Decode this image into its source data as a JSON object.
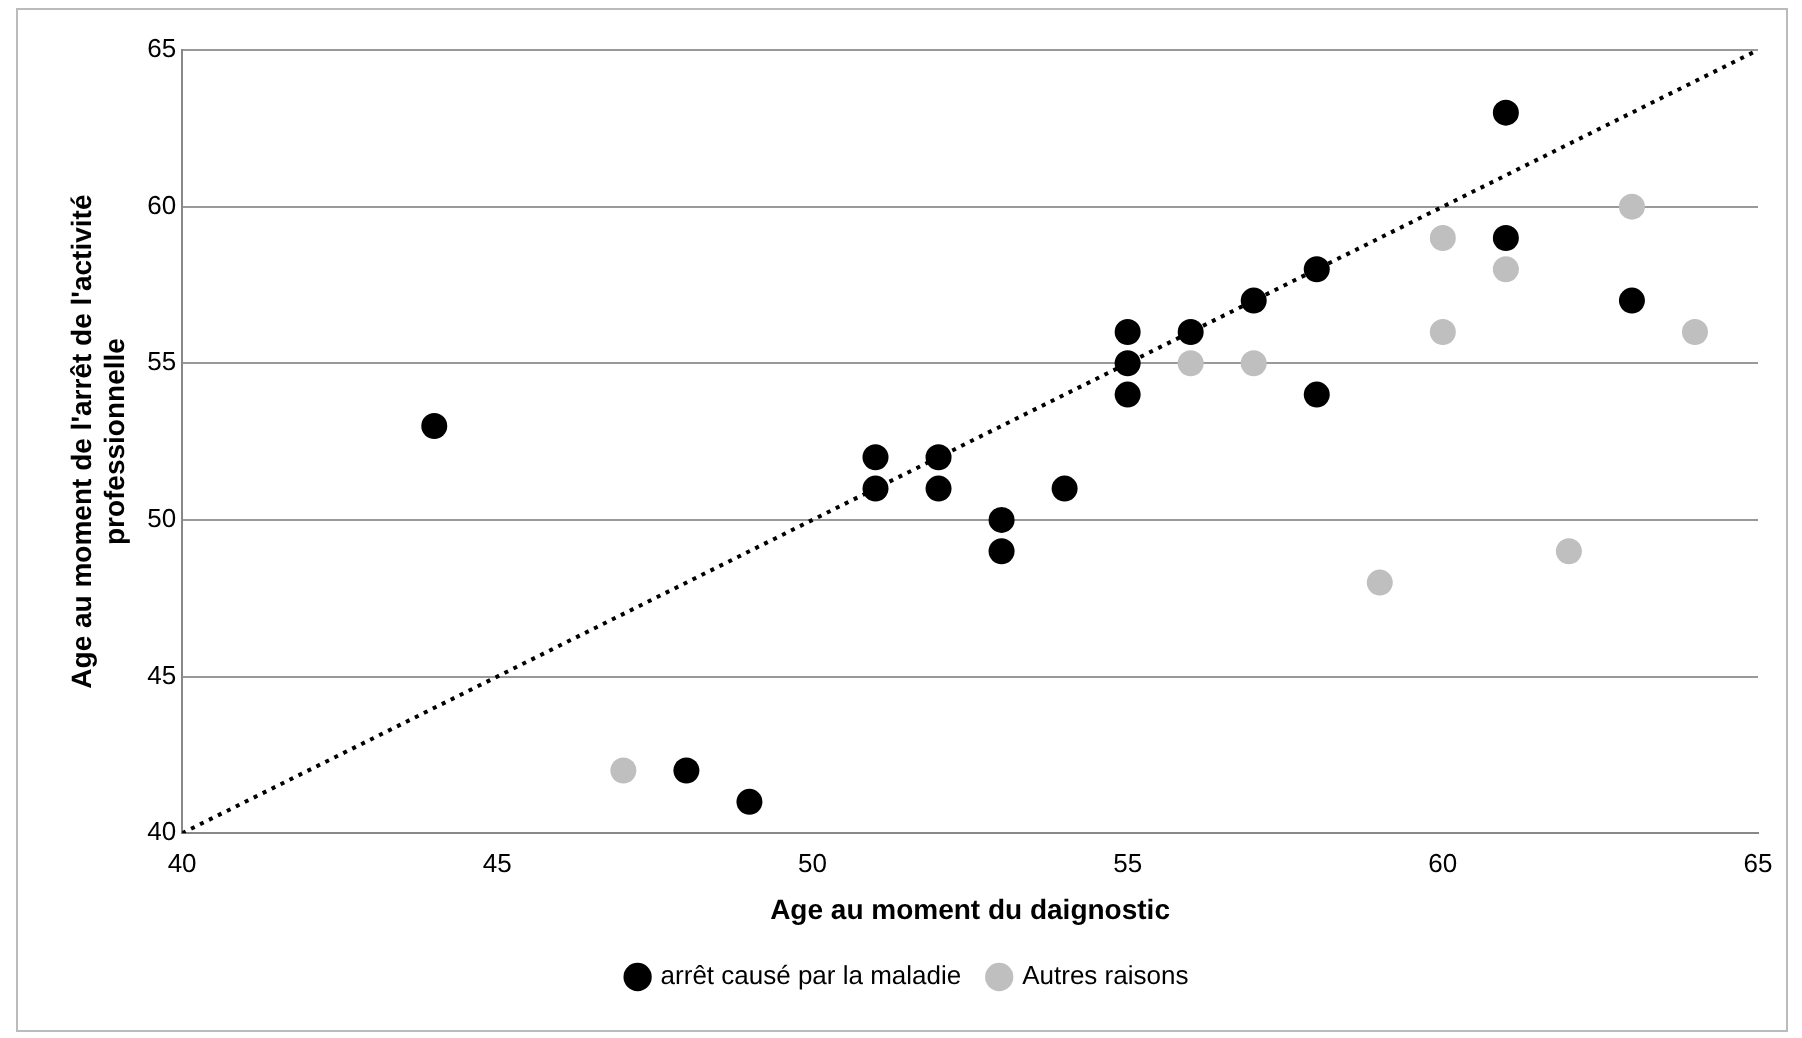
{
  "chart_data": {
    "type": "scatter",
    "xlabel": "Age au moment du daignostic",
    "ylabel": "Age au moment de l'arrêt de l'activité professionnelle",
    "xlim": [
      40,
      65
    ],
    "xticks": [
      40,
      45,
      50,
      55,
      60,
      65
    ],
    "ylim": [
      40,
      65
    ],
    "yticks": [
      40,
      45,
      50,
      55,
      60,
      65
    ],
    "grid": "y",
    "legend": "bottom",
    "marker": "circle",
    "series": [
      {
        "name": "arrêt causé par la maladie",
        "color": "#000000",
        "x": [
          44,
          48,
          49,
          51,
          51,
          52,
          52,
          53,
          53,
          54,
          55,
          55,
          55,
          56,
          57,
          58,
          58,
          61,
          61,
          63
        ],
        "values": [
          53,
          42,
          41,
          52,
          51,
          52,
          51,
          50,
          49,
          51,
          56,
          55,
          54,
          56,
          57,
          58,
          54,
          63,
          59,
          57
        ]
      },
      {
        "name": "Autres raisons",
        "color": "#bfbfbf",
        "x": [
          47,
          56,
          57,
          59,
          60,
          60,
          61,
          62,
          63,
          64
        ],
        "values": [
          42,
          55,
          55,
          48,
          59,
          56,
          58,
          49,
          60,
          56
        ]
      },
      {
        "type": "line",
        "color": "#000000",
        "line_style": "dotted",
        "marker": "none",
        "x": [
          40,
          65
        ],
        "values": [
          40,
          65
        ]
      }
    ]
  }
}
